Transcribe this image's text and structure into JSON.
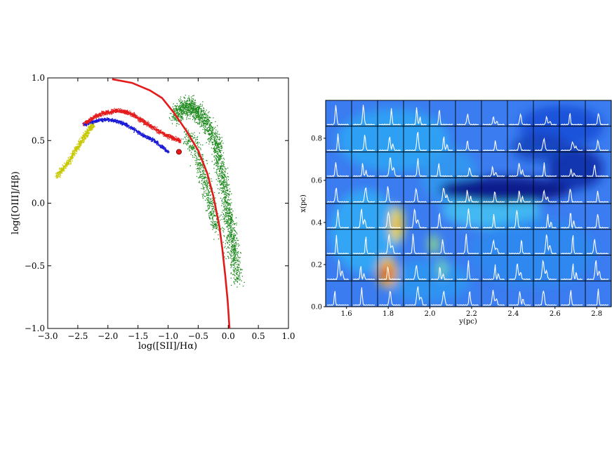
{
  "chart_data": [
    {
      "type": "scatter",
      "xlabel": "log([SII]/Hα)",
      "ylabel": "log([OIII]/Hβ)",
      "xlim": [
        -3.0,
        1.0
      ],
      "ylim": [
        -1.0,
        1.0
      ],
      "xticks": [
        -3.0,
        -2.5,
        -2.0,
        -1.5,
        -1.0,
        -0.5,
        0.0,
        0.5,
        1.0
      ],
      "yticks": [
        -1.0,
        -0.5,
        0.0,
        0.5,
        1.0
      ],
      "xtick_labels": [
        "−3.0",
        "−2.5",
        "−2.0",
        "−1.5",
        "−1.0",
        "−0.5",
        "0.0",
        "0.5",
        "1.0"
      ],
      "ytick_labels": [
        "−1.0",
        "−0.5",
        "0.0",
        "0.5",
        "1.0"
      ],
      "grid": false,
      "colors": {
        "yellow": "#c8c800",
        "blue": "#1a1ad8",
        "red": "#e41a1a",
        "green": "#1f8a1f",
        "curve": "#e41a1a"
      },
      "series": [
        {
          "color": "yellow",
          "points": [
            [
              -2.85,
              0.22
            ],
            [
              -2.78,
              0.27
            ],
            [
              -2.7,
              0.31
            ],
            [
              -2.62,
              0.36
            ],
            [
              -2.55,
              0.42
            ],
            [
              -2.48,
              0.47
            ],
            [
              -2.42,
              0.52
            ],
            [
              -2.36,
              0.56
            ],
            [
              -2.3,
              0.6
            ],
            [
              -2.25,
              0.63
            ]
          ]
        },
        {
          "color": "blue",
          "points": [
            [
              -2.4,
              0.63
            ],
            [
              -2.3,
              0.65
            ],
            [
              -2.2,
              0.66
            ],
            [
              -2.1,
              0.67
            ],
            [
              -2.0,
              0.67
            ],
            [
              -1.9,
              0.66
            ],
            [
              -1.8,
              0.65
            ],
            [
              -1.7,
              0.63
            ],
            [
              -1.6,
              0.6
            ],
            [
              -1.5,
              0.57
            ],
            [
              -1.4,
              0.54
            ],
            [
              -1.3,
              0.52
            ],
            [
              -1.2,
              0.49
            ],
            [
              -1.1,
              0.45
            ],
            [
              -1.0,
              0.41
            ]
          ]
        },
        {
          "color": "red",
          "points": [
            [
              -2.4,
              0.64
            ],
            [
              -2.3,
              0.67
            ],
            [
              -2.2,
              0.7
            ],
            [
              -2.1,
              0.72
            ],
            [
              -2.0,
              0.73
            ],
            [
              -1.9,
              0.74
            ],
            [
              -1.8,
              0.74
            ],
            [
              -1.7,
              0.73
            ],
            [
              -1.6,
              0.71
            ],
            [
              -1.5,
              0.68
            ],
            [
              -1.4,
              0.65
            ],
            [
              -1.3,
              0.62
            ],
            [
              -1.2,
              0.59
            ],
            [
              -1.1,
              0.56
            ],
            [
              -1.0,
              0.54
            ],
            [
              -0.9,
              0.52
            ],
            [
              -0.8,
              0.5
            ]
          ]
        },
        {
          "color": "green",
          "points": [
            [
              -0.9,
              0.7
            ],
            [
              -0.8,
              0.75
            ],
            [
              -0.7,
              0.78
            ],
            [
              -0.6,
              0.76
            ],
            [
              -0.5,
              0.72
            ],
            [
              -0.4,
              0.66
            ],
            [
              -0.3,
              0.58
            ],
            [
              -0.2,
              0.48
            ],
            [
              -0.15,
              0.35
            ],
            [
              -0.1,
              0.2
            ],
            [
              -0.05,
              0.05
            ],
            [
              0.0,
              -0.1
            ],
            [
              0.05,
              -0.25
            ],
            [
              0.1,
              -0.4
            ],
            [
              0.15,
              -0.6
            ],
            [
              -0.7,
              0.55
            ],
            [
              -0.5,
              0.4
            ],
            [
              -0.4,
              0.2
            ],
            [
              -0.3,
              0.0
            ],
            [
              -0.2,
              -0.2
            ]
          ]
        }
      ],
      "curve": {
        "color": "curve",
        "points": [
          [
            -1.93,
            0.99
          ],
          [
            -1.6,
            0.96
          ],
          [
            -1.3,
            0.9
          ],
          [
            -1.1,
            0.84
          ],
          [
            -0.9,
            0.72
          ],
          [
            -0.7,
            0.58
          ],
          [
            -0.5,
            0.42
          ],
          [
            -0.35,
            0.24
          ],
          [
            -0.25,
            0.06
          ],
          [
            -0.15,
            -0.18
          ],
          [
            -0.1,
            -0.36
          ],
          [
            -0.05,
            -0.58
          ],
          [
            -0.01,
            -0.78
          ],
          [
            0.02,
            -1.0
          ]
        ]
      },
      "marker": {
        "x": -0.82,
        "y": 0.41,
        "color": "curve"
      }
    },
    {
      "type": "heatmap",
      "xlabel": "y(pc)",
      "ylabel": "x(pc)",
      "xlim": [
        1.5,
        2.87
      ],
      "ylim": [
        0.0,
        0.98
      ],
      "xticks": [
        1.6,
        1.8,
        2.0,
        2.2,
        2.4,
        2.6,
        2.8
      ],
      "yticks": [
        0.0,
        0.2,
        0.4,
        0.6,
        0.8
      ],
      "xtick_labels": [
        "1.6",
        "1.8",
        "2.0",
        "2.2",
        "2.4",
        "2.6",
        "2.8"
      ],
      "ytick_labels": [
        "0.0",
        "0.2",
        "0.4",
        "0.6",
        "0.8"
      ],
      "grid_cols": 11,
      "grid_rows": 8,
      "grid": true,
      "colormap": "jet",
      "features": [
        {
          "name": "dark-void",
          "x": 2.42,
          "y": 0.6,
          "level": 0.0
        },
        {
          "name": "hot-spot",
          "x": 1.8,
          "y": 0.15,
          "level": 1.0
        },
        {
          "name": "warm-arc",
          "x": 1.82,
          "y": 0.38,
          "level": 0.75
        }
      ]
    }
  ]
}
